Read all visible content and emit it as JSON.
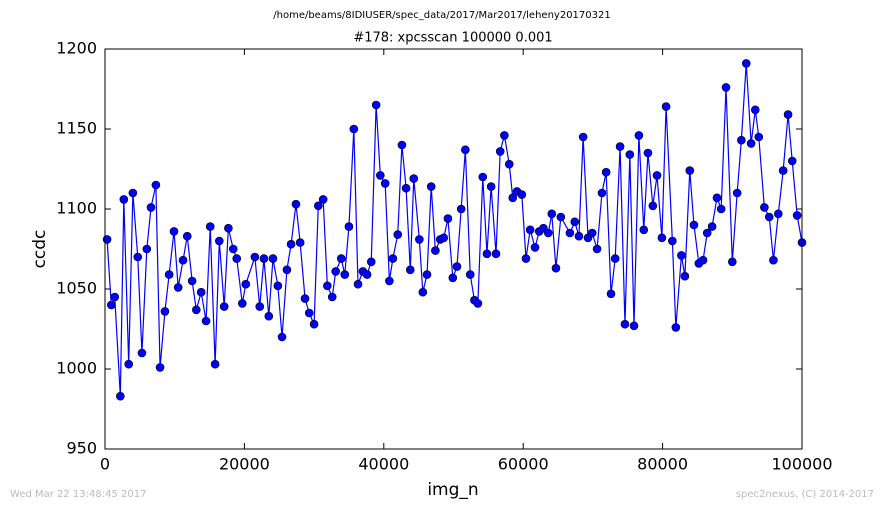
{
  "chart_data": {
    "type": "line",
    "suptitle": "/home/beams/8IDIUSER/spec_data/2017/Mar2017/leheny20170321",
    "title": "#178: xpcsscan 100000 0.001",
    "xlabel": "img_n",
    "ylabel": "ccdc",
    "footer_left": "Wed Mar 22 13:48:45 2017",
    "footer_right": "spec2nexus, (C) 2014-2017",
    "xlim": [
      0,
      100000
    ],
    "xticks": [
      0,
      20000,
      40000,
      60000,
      80000,
      100000
    ],
    "ylim": [
      950,
      1200
    ],
    "yticks": [
      950,
      1000,
      1050,
      1100,
      1150,
      1200
    ],
    "grid": false,
    "x": [
      300,
      900,
      1400,
      2200,
      2700,
      3400,
      4000,
      4700,
      5300,
      6000,
      6600,
      7300,
      7900,
      8600,
      9200,
      9900,
      10500,
      11200,
      11800,
      12500,
      13100,
      13800,
      14500,
      15100,
      15800,
      16400,
      17100,
      17700,
      18400,
      18900,
      19700,
      20200,
      21500,
      22200,
      22800,
      23500,
      24100,
      24800,
      25400,
      26100,
      26700,
      27400,
      28000,
      28700,
      29300,
      30000,
      30600,
      31300,
      31900,
      32600,
      33100,
      33900,
      34400,
      35000,
      35700,
      36300,
      37000,
      37600,
      38200,
      38900,
      39500,
      40200,
      40800,
      41300,
      42000,
      42600,
      43200,
      43800,
      44300,
      45100,
      45600,
      46200,
      46800,
      47400,
      48100,
      48600,
      49200,
      49900,
      50500,
      51100,
      51700,
      52400,
      53000,
      53500,
      54200,
      54800,
      55400,
      56100,
      56700,
      57300,
      58000,
      58500,
      59100,
      59800,
      60400,
      61000,
      61700,
      62300,
      62900,
      63600,
      64100,
      64700,
      65400,
      66700,
      67400,
      68000,
      68600,
      69300,
      69900,
      70600,
      71300,
      71900,
      72600,
      73200,
      73900,
      74600,
      75300,
      75900,
      76600,
      77300,
      77900,
      78600,
      79200,
      79900,
      80500,
      81400,
      81900,
      82700,
      83200,
      83900,
      84500,
      85200,
      85800,
      86400,
      87100,
      87800,
      88400,
      89100,
      90000,
      90700,
      91300,
      92000,
      92700,
      93300,
      93800,
      94600,
      95300,
      95900,
      96600,
      97300,
      98000,
      98600,
      99300,
      100000
    ],
    "series": [
      {
        "name": "ccdc",
        "color": "#0000ff",
        "values": [
          1081,
          1040,
          1045,
          983,
          1106,
          1003,
          1110,
          1070,
          1010,
          1075,
          1101,
          1115,
          1001,
          1036,
          1059,
          1086,
          1051,
          1068,
          1083,
          1055,
          1037,
          1048,
          1030,
          1089,
          1003,
          1080,
          1039,
          1088,
          1075,
          1069,
          1041,
          1053,
          1070,
          1039,
          1069,
          1033,
          1069,
          1052,
          1020,
          1062,
          1078,
          1103,
          1079,
          1044,
          1035,
          1028,
          1102,
          1106,
          1052,
          1045,
          1061,
          1069,
          1059,
          1089,
          1150,
          1053,
          1061,
          1059,
          1067,
          1165,
          1121,
          1116,
          1055,
          1069,
          1084,
          1140,
          1113,
          1062,
          1119,
          1081,
          1048,
          1059,
          1114,
          1074,
          1081,
          1082,
          1094,
          1057,
          1064,
          1100,
          1137,
          1059,
          1043,
          1041,
          1120,
          1072,
          1114,
          1072,
          1136,
          1146,
          1128,
          1107,
          1111,
          1109,
          1069,
          1087,
          1076,
          1086,
          1088,
          1085,
          1097,
          1063,
          1095,
          1085,
          1092,
          1083,
          1145,
          1082,
          1085,
          1075,
          1110,
          1123,
          1047,
          1069,
          1139,
          1028,
          1134,
          1027,
          1146,
          1087,
          1135,
          1102,
          1121,
          1082,
          1164,
          1080,
          1026,
          1071,
          1058,
          1124,
          1090,
          1066,
          1068,
          1085,
          1089,
          1107,
          1100,
          1176,
          1067,
          1110,
          1143,
          1191,
          1141,
          1162,
          1145,
          1101,
          1095,
          1068,
          1097,
          1124,
          1159,
          1130,
          1096,
          1079
        ]
      }
    ]
  }
}
